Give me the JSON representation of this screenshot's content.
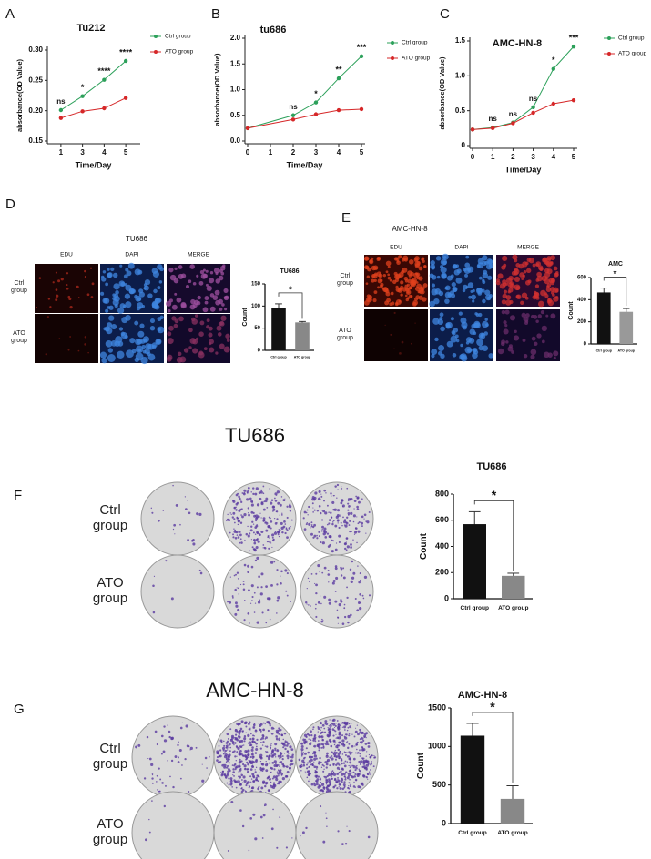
{
  "chart_data": [
    {
      "type": "line",
      "title": "Tu212",
      "categories": [
        "1",
        "3",
        "4",
        "5"
      ],
      "xlabel": "Time/Day",
      "ylabel": "absorbance(OD Value)",
      "ylim": [
        0.15,
        0.3
      ],
      "yticks": [
        {
          "value": 0.15,
          "label": "0.15"
        },
        {
          "value": 0.2,
          "label": "0.20"
        },
        {
          "value": 0.25,
          "label": "0.25"
        },
        {
          "value": 0.3,
          "label": "0.30"
        }
      ],
      "series": [
        {
          "name": "Ctrl group",
          "color": "#2ca05a",
          "values": [
            0.201,
            0.224,
            0.251,
            0.282
          ]
        },
        {
          "name": "ATO group",
          "color": "#d62728",
          "values": [
            0.188,
            0.199,
            0.204,
            0.221
          ]
        }
      ],
      "annotations": [
        "ns",
        "*",
        "****",
        "****"
      ]
    },
    {
      "type": "line",
      "title": "tu686",
      "x": [
        0,
        2,
        3,
        4,
        5
      ],
      "xlim": [
        0,
        5
      ],
      "xticks": [
        0,
        1,
        2,
        3,
        4,
        5
      ],
      "xlabel": "Time/Day",
      "ylabel": "absorbance(OD Value)",
      "ylim": [
        0,
        2.0
      ],
      "yticks": [
        {
          "value": 0,
          "label": "0.0"
        },
        {
          "value": 0.5,
          "label": "0.5"
        },
        {
          "value": 1.0,
          "label": "1.0"
        },
        {
          "value": 1.5,
          "label": "1.5"
        },
        {
          "value": 2.0,
          "label": "2.0"
        }
      ],
      "series": [
        {
          "name": "Ctrl group",
          "color": "#2ca05a",
          "values": [
            0.25,
            0.5,
            0.75,
            1.22,
            1.65
          ]
        },
        {
          "name": "ATO group",
          "color": "#d62728",
          "values": [
            0.25,
            0.42,
            0.52,
            0.6,
            0.62
          ]
        }
      ],
      "annotations": [
        null,
        "ns",
        "*",
        "**",
        "***"
      ]
    },
    {
      "type": "line",
      "title": "AMC-HN-8",
      "x": [
        0,
        1,
        2,
        3,
        4,
        5
      ],
      "xlim": [
        0,
        5
      ],
      "xticks": [
        0,
        1,
        2,
        3,
        4,
        5
      ],
      "xlabel": "Time/Day",
      "ylabel": "absorbance(OD Value)",
      "ylim": [
        0,
        1.5
      ],
      "yticks": [
        0,
        {
          "value": 0.5,
          "label": "0.5"
        },
        {
          "value": 1.0,
          "label": "1.0"
        },
        {
          "value": 1.5,
          "label": "1.5"
        }
      ],
      "series": [
        {
          "name": "Ctrl group",
          "color": "#2ca05a",
          "values": [
            0.23,
            0.26,
            0.33,
            0.55,
            1.1,
            1.42
          ]
        },
        {
          "name": "ATO group",
          "color": "#d62728",
          "values": [
            0.23,
            0.25,
            0.32,
            0.47,
            0.6,
            0.65
          ]
        }
      ],
      "annotations": [
        null,
        "ns",
        "ns",
        "ns",
        "*",
        "***"
      ]
    },
    {
      "type": "bar",
      "title": "TU686",
      "ylabel": "Count",
      "categories": [
        "Ctrl group",
        "ATO group"
      ],
      "values": [
        95,
        63
      ],
      "errors": [
        10,
        2
      ],
      "colors": [
        "#111111",
        "#888888"
      ],
      "ylim": [
        0,
        150
      ],
      "yticks": [
        0,
        50,
        100,
        150
      ],
      "significance": "*"
    },
    {
      "type": "bar",
      "title": "AMC",
      "ylabel": "Count",
      "categories": [
        "Ctrl group",
        "ATO group"
      ],
      "values": [
        465,
        290
      ],
      "errors": [
        40,
        30
      ],
      "colors": [
        "#111111",
        "#999999"
      ],
      "ylim": [
        0,
        600
      ],
      "yticks": [
        0,
        200,
        400,
        600
      ],
      "significance": "*"
    },
    {
      "type": "bar",
      "title": "TU686",
      "ylabel": "Count",
      "categories": [
        "Ctrl group",
        "ATO group"
      ],
      "values": [
        570,
        175
      ],
      "errors": [
        95,
        20
      ],
      "colors": [
        "#111111",
        "#888888"
      ],
      "ylim": [
        0,
        800
      ],
      "yticks": [
        0,
        200,
        400,
        600,
        800
      ],
      "significance": "*"
    },
    {
      "type": "bar",
      "title": "AMC-HN-8",
      "ylabel": "Count",
      "categories": [
        "Ctrl group",
        "ATO group"
      ],
      "values": [
        1140,
        320
      ],
      "errors": [
        160,
        170
      ],
      "colors": [
        "#111111",
        "#888888"
      ],
      "ylim": [
        0,
        1500
      ],
      "yticks": [
        0,
        500,
        1000,
        1500
      ],
      "significance": "*"
    }
  ],
  "figure": {
    "panel_labels": [
      "A",
      "B",
      "C",
      "D",
      "E",
      "F",
      "G"
    ],
    "images": [
      {
        "title": "TU686",
        "columns": [
          "EDU",
          "DAPI",
          "MERGE"
        ],
        "rows": [
          "Ctrl group",
          "ATO group"
        ]
      },
      {
        "title": "AMC-HN-8",
        "columns": [
          "EDU",
          "DAPI",
          "MERGE"
        ],
        "rows": [
          "Ctrl group",
          "ATO group"
        ]
      },
      {
        "title": "TU686",
        "rows": [
          "Ctrl group",
          "ATO group"
        ]
      },
      {
        "title": "AMC-HN-8",
        "rows": [
          "Ctrl group",
          "ATO group"
        ]
      }
    ]
  }
}
